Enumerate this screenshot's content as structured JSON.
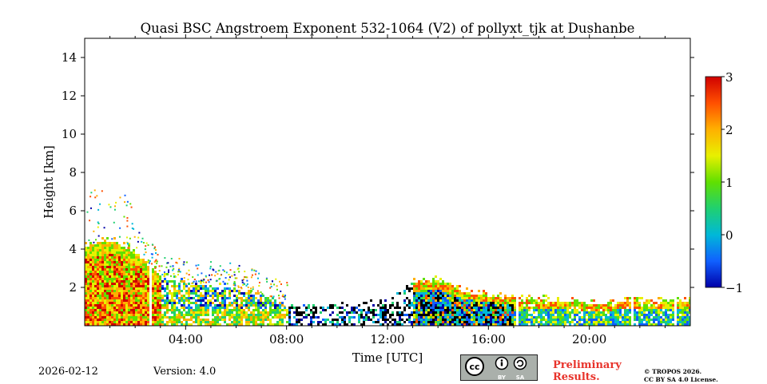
{
  "chart_data": {
    "type": "heatmap",
    "title": "Quasi BSC Angstroem Exponent 532-1064 (V2) of pollyxt_tjk at Dushanbe",
    "xlabel": "Time [UTC]",
    "ylabel": "Height [km]",
    "xlim_hours": [
      0,
      24
    ],
    "ylim_km": [
      0,
      15
    ],
    "x_ticks": [
      {
        "hour": 4,
        "label": "04:00"
      },
      {
        "hour": 8,
        "label": "08:00"
      },
      {
        "hour": 12,
        "label": "12:00"
      },
      {
        "hour": 16,
        "label": "16:00"
      },
      {
        "hour": 20,
        "label": "20:00"
      }
    ],
    "y_ticks": [
      {
        "value": 2,
        "label": "2"
      },
      {
        "value": 4,
        "label": "4"
      },
      {
        "value": 6,
        "label": "6"
      },
      {
        "value": 8,
        "label": "8"
      },
      {
        "value": 10,
        "label": "10"
      },
      {
        "value": 12,
        "label": "12"
      },
      {
        "value": 14,
        "label": "14"
      }
    ],
    "colorbar": {
      "min": -1,
      "max": 3,
      "ticks": [
        {
          "value": 3,
          "label": "3"
        },
        {
          "value": 2,
          "label": "2"
        },
        {
          "value": 1,
          "label": "1"
        },
        {
          "value": 0,
          "label": "0"
        },
        {
          "value": -1,
          "label": "−1"
        }
      ],
      "colormap": [
        "#0000a8",
        "#1060ff",
        "#00b8d8",
        "#20d070",
        "#60e000",
        "#e8f000",
        "#ffb000",
        "#ff5000",
        "#d00000"
      ]
    },
    "profile_top_km": [
      {
        "t": 0.0,
        "top": 4.2
      },
      {
        "t": 1.0,
        "top": 4.5
      },
      {
        "t": 2.0,
        "top": 3.8
      },
      {
        "t": 3.0,
        "top": 2.6
      },
      {
        "t": 4.0,
        "top": 2.2
      },
      {
        "t": 6.0,
        "top": 2.0
      },
      {
        "t": 8.0,
        "top": 1.0
      },
      {
        "t": 10.0,
        "top": 1.0
      },
      {
        "t": 12.0,
        "top": 1.2
      },
      {
        "t": 13.0,
        "top": 2.3
      },
      {
        "t": 14.0,
        "top": 2.4
      },
      {
        "t": 15.0,
        "top": 1.8
      },
      {
        "t": 17.0,
        "top": 1.4
      },
      {
        "t": 18.0,
        "top": 1.4
      },
      {
        "t": 20.0,
        "top": 1.2
      },
      {
        "t": 22.0,
        "top": 1.3
      },
      {
        "t": 24.0,
        "top": 1.3
      }
    ],
    "gaps_hours": [
      2.55,
      17.1,
      21.65,
      23.35
    ]
  },
  "footer": {
    "date": "2026-02-12",
    "version": "Version: 4.0",
    "preliminary_line1": "Preliminary",
    "preliminary_line2": "Results.",
    "copyright_line1": "© TROPOS 2026.",
    "copyright_line2": "CC BY SA 4.0 License.",
    "license_badge": {
      "cc": "cc",
      "by": "BY",
      "sa": "SA"
    }
  },
  "colors": {
    "preliminary": "#e8332b",
    "badge_bg": "#aab0ab"
  }
}
